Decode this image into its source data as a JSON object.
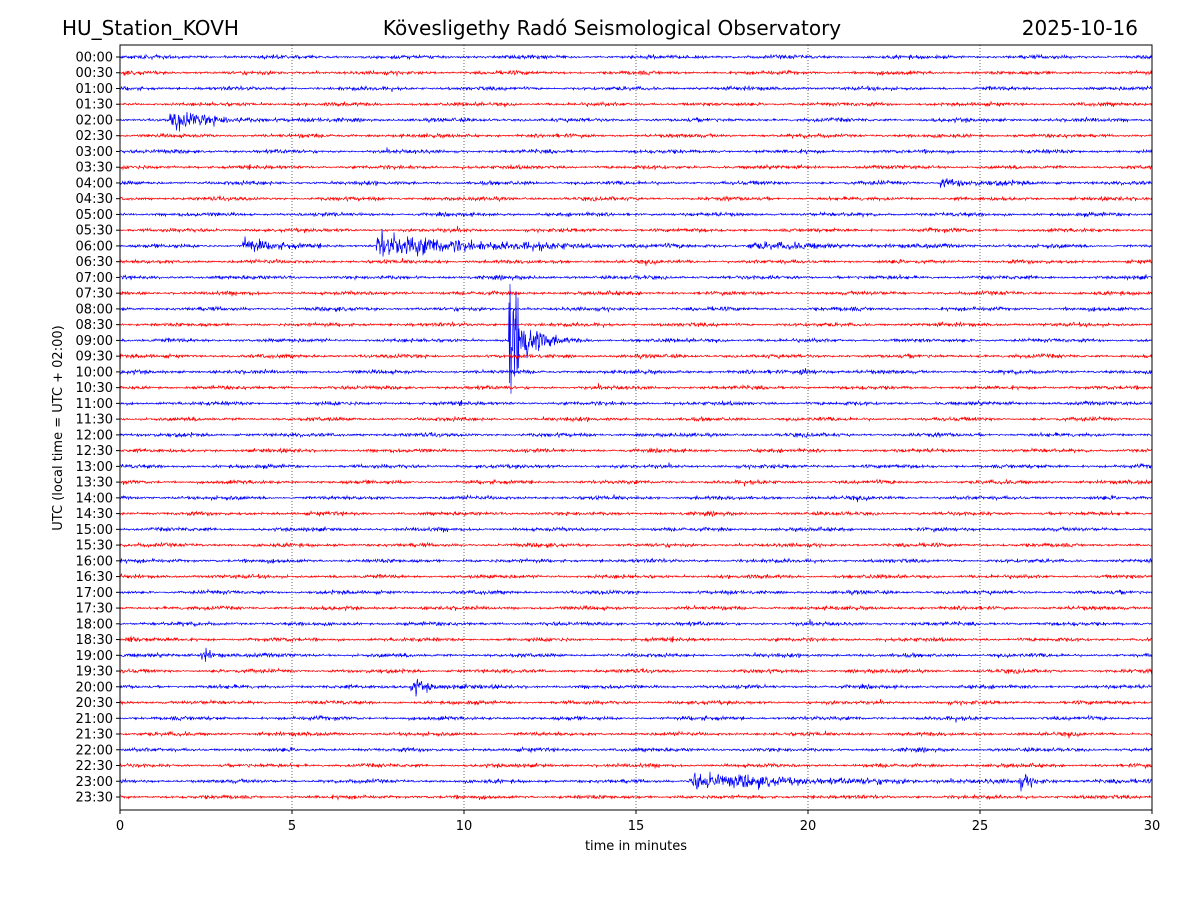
{
  "chart_data": {
    "type": "line",
    "subtype": "helicorder",
    "title_left": "HU_Station_KOVH",
    "title_center": "Kövesligethy Radó Seismological Observatory",
    "title_right": "2025-10-16",
    "xlabel": "time in minutes",
    "ylabel": "UTC (local time = UTC + 02:00)",
    "xlim": [
      0,
      30
    ],
    "xticks": [
      0,
      5,
      10,
      15,
      20,
      25,
      30
    ],
    "grid": "vertical dotted",
    "row_labels": [
      "00:00",
      "00:30",
      "01:00",
      "01:30",
      "02:00",
      "02:30",
      "03:00",
      "03:30",
      "04:00",
      "04:30",
      "05:00",
      "05:30",
      "06:00",
      "06:30",
      "07:00",
      "07:30",
      "08:00",
      "08:30",
      "09:00",
      "09:30",
      "10:00",
      "10:30",
      "11:00",
      "11:30",
      "12:00",
      "12:30",
      "13:00",
      "13:30",
      "14:00",
      "14:30",
      "15:00",
      "15:30",
      "16:00",
      "16:30",
      "17:00",
      "17:30",
      "18:00",
      "18:30",
      "19:00",
      "19:30",
      "20:00",
      "20:30",
      "21:00",
      "21:30",
      "22:00",
      "22:30",
      "23:00",
      "23:30"
    ],
    "series_colors": [
      "#0000ff",
      "#ff0000"
    ],
    "background_noise_level": 1.3,
    "events": [
      {
        "row": "02:00",
        "start_min": 1.5,
        "decay_min": 1.2,
        "amplitude": 9
      },
      {
        "row": "04:00",
        "start_min": 23.9,
        "decay_min": 1.0,
        "amplitude": 4
      },
      {
        "row": "06:00",
        "start_min": 3.6,
        "decay_min": 0.6,
        "amplitude": 10
      },
      {
        "row": "06:00",
        "start_min": 7.5,
        "decay_min": 2.5,
        "amplitude": 13
      },
      {
        "row": "06:00",
        "start_min": 18.3,
        "decay_min": 2.0,
        "amplitude": 3
      },
      {
        "row": "09:00",
        "start_min": 11.35,
        "decay_min": 0.4,
        "amplitude": 70
      },
      {
        "row": "10:00",
        "start_min": 19.8,
        "decay_min": 0.5,
        "amplitude": 3
      },
      {
        "row": "18:30",
        "start_min": 0.2,
        "decay_min": 0.2,
        "amplitude": 5
      },
      {
        "row": "19:00",
        "start_min": 2.4,
        "decay_min": 0.3,
        "amplitude": 7
      },
      {
        "row": "20:00",
        "start_min": 8.5,
        "decay_min": 0.5,
        "amplitude": 8
      },
      {
        "row": "23:00",
        "start_min": 16.6,
        "decay_min": 3.0,
        "amplitude": 8
      },
      {
        "row": "23:00",
        "start_min": 26.2,
        "decay_min": 0.3,
        "amplitude": 8
      }
    ]
  }
}
